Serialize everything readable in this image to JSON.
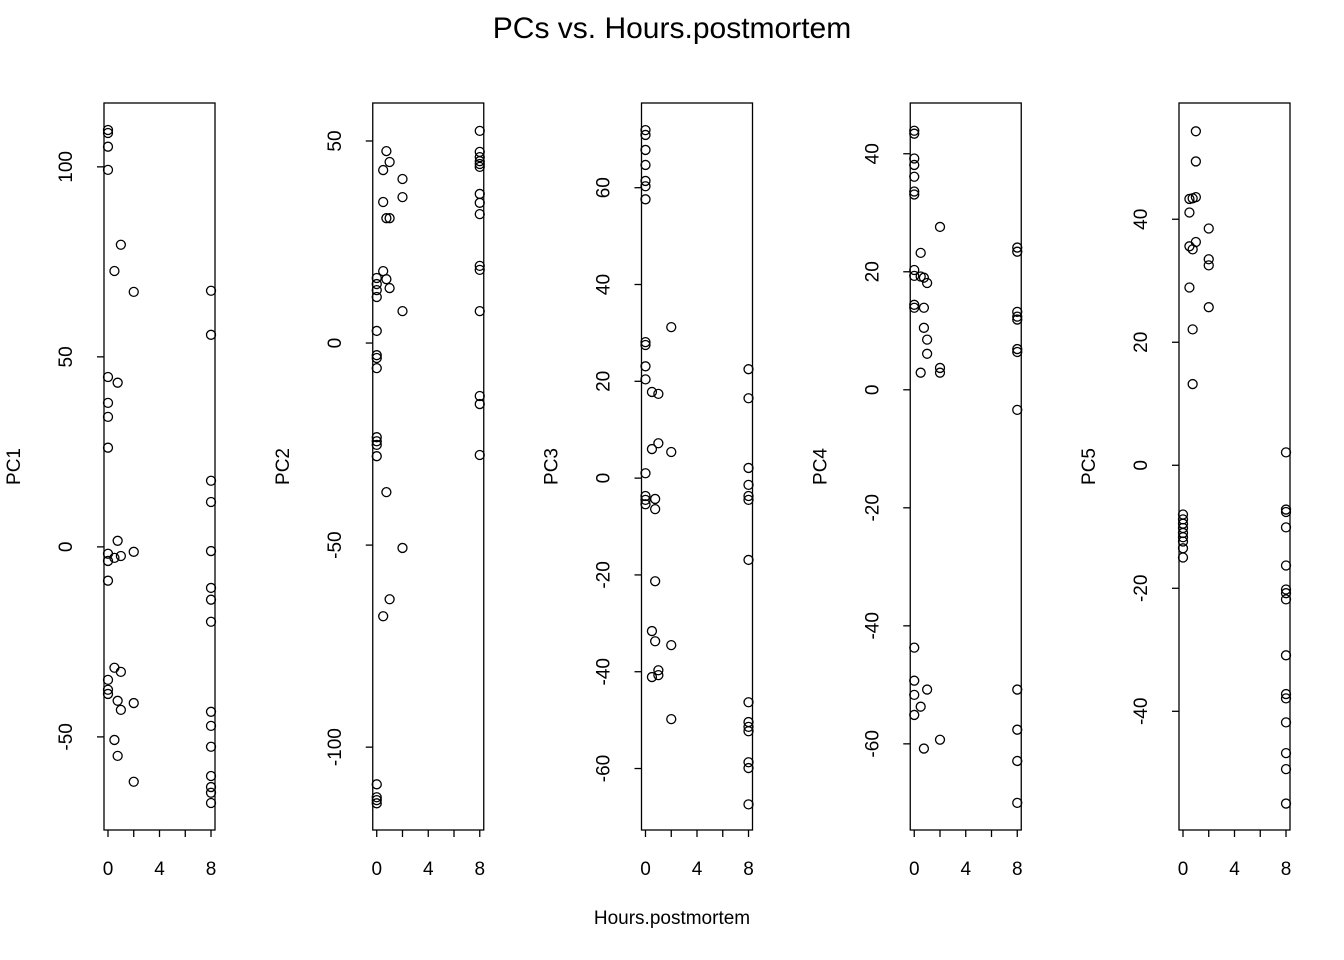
{
  "title": "PCs vs. Hours.postmortem",
  "xlabel": "Hours.postmortem",
  "chart_data": [
    {
      "type": "scatter",
      "ylabel": "PC1",
      "color": "#000000",
      "xlim": [
        -0.31,
        8.31
      ],
      "xticks": [
        0,
        4,
        8
      ],
      "xminor_ticks": [
        2,
        6
      ],
      "ylim": [
        -74.5,
        116.8
      ],
      "yticks": [
        -50,
        0,
        50,
        100
      ],
      "x": [
        0,
        0,
        0,
        0,
        1,
        0.5,
        2,
        0,
        0.75,
        0,
        0,
        0,
        0.75,
        2,
        1,
        0,
        0,
        0.5,
        0,
        0.5,
        1,
        0,
        0,
        0,
        0.75,
        2,
        1,
        0.5,
        0.75,
        2,
        8,
        8,
        8,
        8,
        8,
        8,
        8,
        8,
        8,
        8,
        8,
        8,
        8,
        8,
        8
      ],
      "y": [
        109.7,
        108.9,
        105.3,
        99.2,
        79.5,
        72.6,
        67.1,
        44.7,
        43.2,
        37.9,
        34.2,
        26.1,
        1.6,
        -1.3,
        -2.4,
        -1.8,
        -3.7,
        -2.9,
        -8.9,
        -31.8,
        -32.9,
        -35,
        -37.6,
        -38.7,
        -40.5,
        -41.1,
        -42.9,
        -50.8,
        -55,
        -61.8,
        67.4,
        55.8,
        17.4,
        11.8,
        -1.1,
        -10.8,
        -13.9,
        -19.7,
        -43.4,
        -47.1,
        -52.6,
        -60.3,
        -63.2,
        -64.7,
        -67.4
      ]
    },
    {
      "type": "scatter",
      "ylabel": "PC2",
      "color": "#000000",
      "xlim": [
        -0.31,
        8.31
      ],
      "xticks": [
        0,
        4,
        8
      ],
      "xminor_ticks": [
        2,
        6
      ],
      "ylim": [
        -120.5,
        59.4
      ],
      "yticks": [
        -100,
        -50,
        0,
        50
      ],
      "x": [
        0.5,
        0.75,
        1,
        0.5,
        2,
        2,
        0.75,
        1,
        0.5,
        0.75,
        0,
        0,
        0,
        0,
        1,
        2,
        0,
        0,
        0,
        0,
        0,
        0,
        0,
        0,
        0.75,
        2,
        1,
        0.5,
        0,
        0,
        0,
        0,
        8,
        8,
        8,
        8,
        8,
        8,
        8,
        8,
        8,
        8,
        8,
        8,
        8,
        8,
        8
      ],
      "y": [
        42.8,
        47.5,
        44.8,
        34.9,
        40.6,
        36.1,
        30.9,
        30.9,
        17.8,
        15.8,
        16.1,
        14.6,
        13.1,
        11.4,
        13.6,
        7.9,
        3,
        -3,
        -3.7,
        -6.2,
        -23.3,
        -24.3,
        -25.2,
        -28,
        -36.9,
        -50.7,
        -63.4,
        -67.6,
        -109.2,
        -112.4,
        -113.1,
        -113.9,
        52.5,
        47.3,
        46,
        45,
        44.3,
        43.6,
        36.9,
        34.7,
        31.9,
        19.1,
        18.1,
        7.9,
        -13.1,
        -15.1,
        -27.7
      ]
    },
    {
      "type": "scatter",
      "ylabel": "PC3",
      "color": "#000000",
      "xlim": [
        -0.31,
        8.31
      ],
      "xticks": [
        0,
        4,
        8
      ],
      "xminor_ticks": [
        2,
        6
      ],
      "ylim": [
        -72.7,
        77.5
      ],
      "yticks": [
        -60,
        -40,
        -20,
        0,
        20,
        40,
        60
      ],
      "x": [
        0,
        0,
        0,
        0,
        0,
        0,
        0,
        0,
        0,
        0,
        0,
        0,
        0,
        0,
        0,
        0.5,
        1,
        2,
        0.5,
        1,
        2,
        0.75,
        0.75,
        0.75,
        0.5,
        0.75,
        2,
        1,
        1,
        0.5,
        2,
        8,
        8,
        8,
        8,
        8,
        8,
        8,
        8,
        8,
        8,
        8,
        8,
        8,
        8
      ],
      "y": [
        71.9,
        70.9,
        67.8,
        64.7,
        61.4,
        60.3,
        57.6,
        28.1,
        27.5,
        23.1,
        20.4,
        1,
        -3.7,
        -4.5,
        -5.4,
        17.8,
        17.4,
        31.2,
        6,
        7.2,
        5.4,
        -4.3,
        -6.4,
        -21.3,
        -31.6,
        -33.7,
        -34.5,
        -39.7,
        -40.7,
        -41.1,
        -49.8,
        22.5,
        16.5,
        2.1,
        -1.4,
        -3.7,
        -4.5,
        -16.9,
        -46.3,
        -50.4,
        -51.4,
        -52.3,
        -58.7,
        -59.9,
        -67.4
      ]
    },
    {
      "type": "scatter",
      "ylabel": "PC4",
      "color": "#000000",
      "xlim": [
        -0.31,
        8.31
      ],
      "xticks": [
        0,
        4,
        8
      ],
      "xminor_ticks": [
        2,
        6
      ],
      "ylim": [
        -74.6,
        48.6
      ],
      "yticks": [
        -60,
        -40,
        -20,
        0,
        20,
        40
      ],
      "x": [
        0,
        0,
        0,
        0,
        0,
        0,
        0,
        0,
        0,
        0,
        0,
        0,
        0,
        0,
        0,
        0.5,
        0.5,
        0.75,
        1,
        2,
        0.75,
        0.75,
        1,
        1,
        0.5,
        2,
        2,
        1,
        0.5,
        0.75,
        2,
        8,
        8,
        8,
        8,
        8,
        8,
        8,
        8,
        8,
        8,
        8,
        8
      ],
      "y": [
        43.9,
        43.4,
        39.2,
        38.1,
        36.1,
        33.6,
        33.1,
        20.3,
        19.3,
        14.4,
        13.9,
        -43.7,
        -49.3,
        -51.7,
        -55.1,
        23.2,
        19.2,
        19,
        18.1,
        27.6,
        13.9,
        10.5,
        8.5,
        6.1,
        2.9,
        3.7,
        2.9,
        -50.8,
        -53.7,
        -60.8,
        -59.3,
        24.1,
        23.4,
        13.2,
        12.4,
        11.9,
        6.9,
        6.4,
        -3.4,
        -50.8,
        -57.6,
        -62.9,
        -70
      ]
    },
    {
      "type": "scatter",
      "ylabel": "PC5",
      "color": "#000000",
      "xlim": [
        -0.31,
        8.31
      ],
      "xticks": [
        0,
        4,
        8
      ],
      "xminor_ticks": [
        2,
        6
      ],
      "ylim": [
        -59.3,
        58.9
      ],
      "yticks": [
        -40,
        -20,
        0,
        20,
        40
      ],
      "x": [
        1,
        1,
        0.5,
        0.75,
        1,
        0.5,
        2,
        1,
        0.5,
        0.75,
        2,
        2,
        0.5,
        2,
        0.75,
        0.75,
        0,
        0,
        0,
        0,
        0,
        0,
        0,
        0,
        0,
        8,
        8,
        8,
        8,
        8,
        8,
        8,
        8,
        8,
        8,
        8,
        8,
        8,
        8,
        8
      ],
      "y": [
        54.3,
        49.4,
        43.3,
        43.4,
        43.6,
        41.1,
        38.5,
        36.3,
        35.6,
        35.1,
        33.5,
        32.5,
        28.9,
        25.7,
        22.1,
        13.2,
        -8,
        -8.8,
        -9.5,
        -10.2,
        -11,
        -11.7,
        -12.4,
        -13.5,
        -15,
        2.1,
        -7.2,
        -7.6,
        -10.1,
        -16.3,
        -20.2,
        -20.8,
        -21.8,
        -30.9,
        -37.2,
        -37.9,
        -41.8,
        -46.8,
        -49.4,
        -55
      ]
    }
  ]
}
